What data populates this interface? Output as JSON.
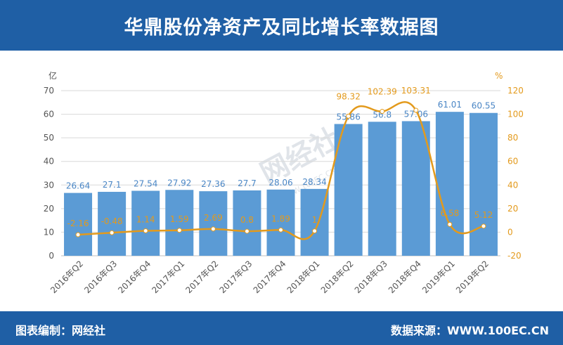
{
  "header": {
    "title": "华鼎股份净资产及同比增长率数据图"
  },
  "footer": {
    "left": "图表编制：网经社",
    "right": "数据来源：WWW.100EC.CN"
  },
  "watermark": {
    "main": "网经社",
    "sub": "WWW.100EC.CN"
  },
  "colors": {
    "header_bg": "#1f5fa5",
    "bar": "#5b9bd5",
    "bar_label": "#4a86c5",
    "line": "#e39a1c",
    "axis_text": "#555555",
    "grid": "#d9d9d9"
  },
  "chart_data": {
    "type": "bar",
    "categories": [
      "2016年Q2",
      "2016年Q3",
      "2016年Q4",
      "2017年Q1",
      "2017年Q2",
      "2017年Q3",
      "2017年Q4",
      "2018年Q1",
      "2018年Q2",
      "2018年Q3",
      "2018年Q4",
      "2019年Q1",
      "2019年Q2"
    ],
    "series": [
      {
        "type": "bar",
        "axis": "left",
        "values": [
          26.64,
          27.1,
          27.54,
          27.92,
          27.36,
          27.7,
          28.06,
          28.34,
          55.86,
          56.8,
          57.06,
          61.01,
          60.55
        ],
        "labels": [
          "26.64",
          "27.1",
          "27.54",
          "27.92",
          "27.36",
          "27.7",
          "28.06",
          "28.34",
          "55.86",
          "56.8",
          "57.06",
          "61.01",
          "60.55"
        ]
      },
      {
        "type": "line",
        "axis": "right",
        "values": [
          -2.16,
          -0.48,
          1.14,
          1.59,
          2.69,
          0.8,
          1.89,
          1,
          98.32,
          102.39,
          103.31,
          6.58,
          5.12
        ],
        "labels": [
          "-2.16",
          "-0.48",
          "1.14",
          "1.59",
          "2.69",
          "0.8",
          "1.89",
          "1",
          "98.32",
          "102.39",
          "103.31",
          "6.58",
          "5.12"
        ]
      }
    ],
    "left_axis": {
      "unit": "亿",
      "min": 0,
      "max": 70,
      "ticks": [
        0,
        10,
        20,
        30,
        40,
        50,
        60,
        70
      ]
    },
    "right_axis": {
      "unit": "%",
      "min": -20,
      "max": 120,
      "ticks": [
        -20,
        0,
        20,
        40,
        60,
        80,
        100,
        120
      ]
    },
    "grid": true
  }
}
